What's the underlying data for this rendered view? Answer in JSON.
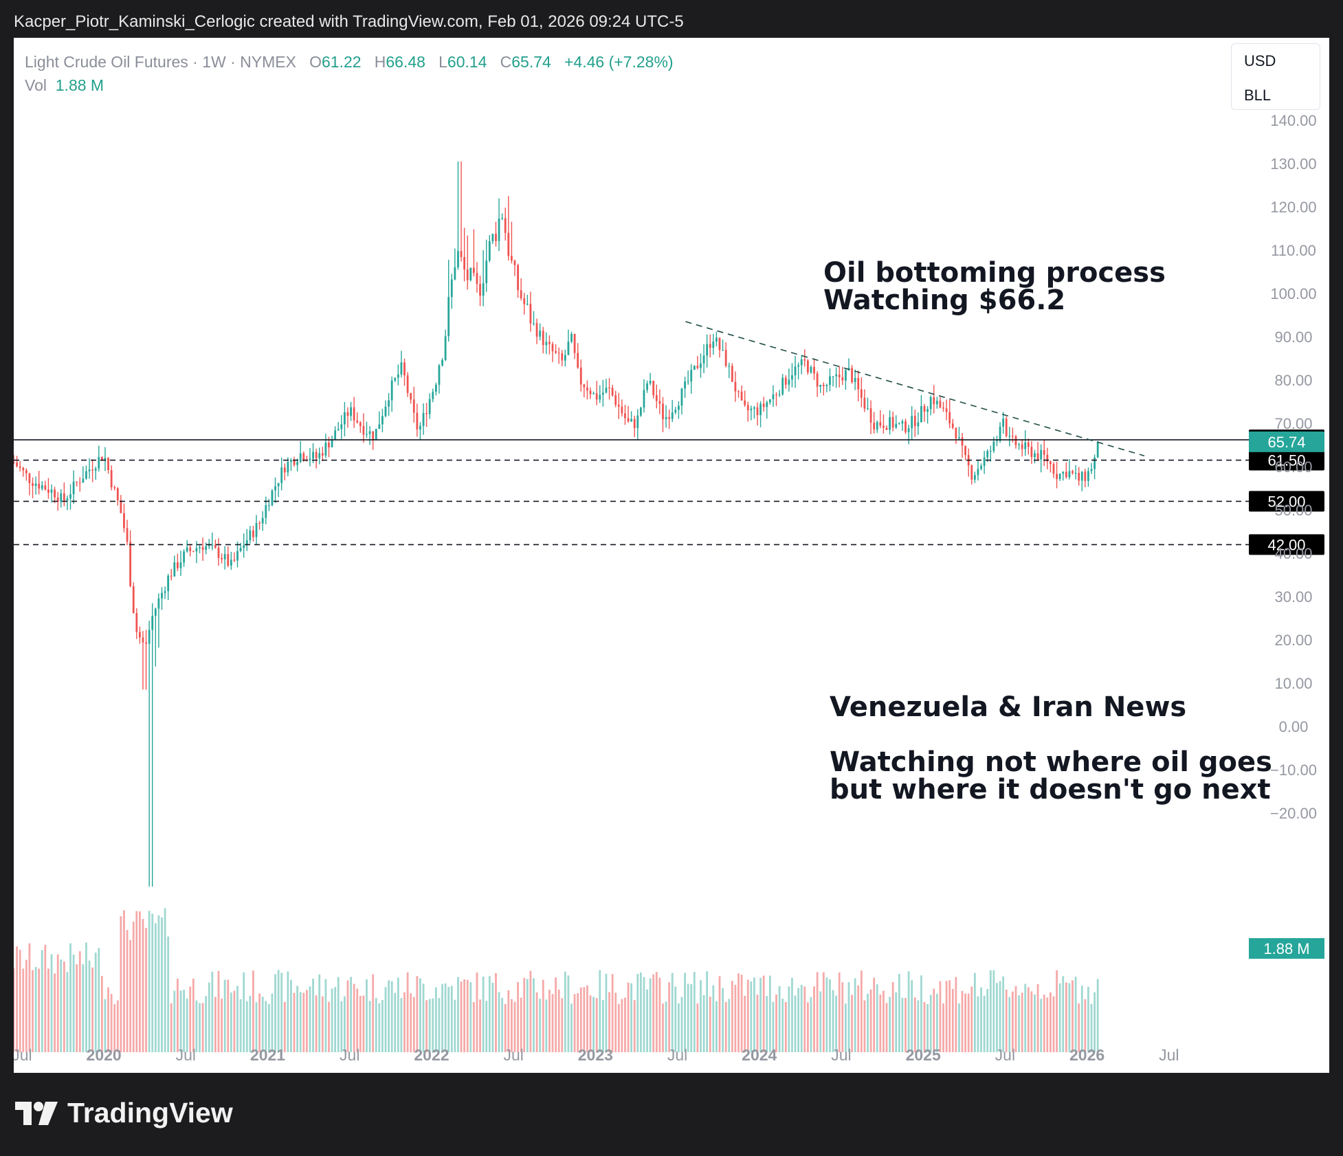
{
  "caption": "Kacper_Piotr_Kaminski_Cerlogic created with TradingView.com, Feb 01, 2026 09:24 UTC-5",
  "legend": {
    "title": "Light Crude Oil Futures · 1W · NYMEX",
    "o_label": "O",
    "o": "61.22",
    "h_label": "H",
    "h": "66.48",
    "l_label": "L",
    "l": "60.14",
    "c_label": "C",
    "c": "65.74",
    "change": "+4.46 (+7.28%)",
    "vol_label": "Vol",
    "vol": "1.88 M"
  },
  "units": {
    "currency": "USD",
    "unit": "BLL"
  },
  "annotations": {
    "top_line1": "Oil bottoming process",
    "top_line2": "Watching $66.2",
    "mid_line1": "Venezuela & Iran News",
    "mid_line2": "Watching not where oil goes",
    "mid_line3": "but where it doesn't go next"
  },
  "footer": {
    "brand": "TradingView"
  },
  "colors": {
    "up": "#26a69a",
    "down": "#ef5350",
    "vol_up": "#9fd8d1",
    "vol_down": "#f5a9a8",
    "axis_text": "#9598a1"
  },
  "chart_data": {
    "type": "candlestick",
    "title": "Light Crude Oil Futures · 1W · NYMEX",
    "y_ticks": [
      "140.00",
      "130.00",
      "120.00",
      "110.00",
      "100.00",
      "90.00",
      "80.00",
      "70.00",
      "60.00",
      "50.00",
      "40.00",
      "30.00",
      "20.00",
      "10.00",
      "0.00",
      "−10.00",
      "−20.00"
    ],
    "ylim": [
      -25,
      145
    ],
    "x_labels": [
      "Jul",
      "2020",
      "Jul",
      "2021",
      "Jul",
      "2022",
      "Jul",
      "2023",
      "Jul",
      "2024",
      "Jul",
      "2025",
      "Jul",
      "2026",
      "Jul"
    ],
    "x_positions_years": [
      2019.5,
      2020.0,
      2020.5,
      2021.0,
      2021.5,
      2022.0,
      2022.5,
      2023.0,
      2023.5,
      2024.0,
      2024.5,
      2025.0,
      2025.5,
      2026.0,
      2026.5
    ],
    "xlim": [
      2019.45,
      2027.0
    ],
    "last_date": 2026.08,
    "levels": [
      {
        "value": 66.2,
        "label": "66.20",
        "style": "solid"
      },
      {
        "value": 61.5,
        "label": "61.50",
        "style": "dashed"
      },
      {
        "value": 52.0,
        "label": "52.00",
        "style": "dashed"
      },
      {
        "value": 42.0,
        "label": "42.00",
        "style": "dashed"
      }
    ],
    "last_price": {
      "value": 65.74,
      "label": "65.74"
    },
    "last_volume": {
      "label": "1.88 M"
    },
    "trendline": [
      {
        "x": 2023.55,
        "y": 93.5
      },
      {
        "x": 2026.35,
        "y": 62.5
      }
    ],
    "price_path": [
      [
        2019.45,
        61
      ],
      [
        2019.55,
        57
      ],
      [
        2019.7,
        54
      ],
      [
        2019.75,
        52
      ],
      [
        2019.85,
        57
      ],
      [
        2019.95,
        61
      ],
      [
        2020.0,
        63
      ],
      [
        2020.05,
        56
      ],
      [
        2020.1,
        50
      ],
      [
        2020.14,
        43
      ],
      [
        2020.17,
        30
      ],
      [
        2020.2,
        22
      ],
      [
        2020.25,
        18
      ],
      [
        2020.3,
        26
      ],
      [
        2020.4,
        35
      ],
      [
        2020.5,
        40
      ],
      [
        2020.6,
        42
      ],
      [
        2020.7,
        40
      ],
      [
        2020.78,
        37
      ],
      [
        2020.85,
        42
      ],
      [
        2020.95,
        47
      ],
      [
        2021.0,
        52
      ],
      [
        2021.1,
        60
      ],
      [
        2021.2,
        63
      ],
      [
        2021.3,
        62
      ],
      [
        2021.4,
        67
      ],
      [
        2021.5,
        73
      ],
      [
        2021.58,
        69
      ],
      [
        2021.65,
        67
      ],
      [
        2021.75,
        78
      ],
      [
        2021.82,
        83
      ],
      [
        2021.88,
        73
      ],
      [
        2021.92,
        68
      ],
      [
        2022.0,
        77
      ],
      [
        2022.08,
        90
      ],
      [
        2022.15,
        110
      ],
      [
        2022.2,
        105
      ],
      [
        2022.28,
        100
      ],
      [
        2022.35,
        110
      ],
      [
        2022.43,
        119
      ],
      [
        2022.5,
        104
      ],
      [
        2022.6,
        94
      ],
      [
        2022.7,
        88
      ],
      [
        2022.8,
        84
      ],
      [
        2022.85,
        90
      ],
      [
        2022.9,
        80
      ],
      [
        2022.96,
        78
      ],
      [
        2023.0,
        76
      ],
      [
        2023.08,
        78
      ],
      [
        2023.2,
        70
      ],
      [
        2023.25,
        70
      ],
      [
        2023.32,
        80
      ],
      [
        2023.42,
        71
      ],
      [
        2023.5,
        75
      ],
      [
        2023.6,
        82
      ],
      [
        2023.72,
        90
      ],
      [
        2023.8,
        84
      ],
      [
        2023.9,
        73
      ],
      [
        2024.0,
        73
      ],
      [
        2024.1,
        77
      ],
      [
        2024.2,
        82
      ],
      [
        2024.28,
        84
      ],
      [
        2024.38,
        78
      ],
      [
        2024.45,
        80
      ],
      [
        2024.55,
        82
      ],
      [
        2024.62,
        76
      ],
      [
        2024.7,
        70
      ],
      [
        2024.8,
        70
      ],
      [
        2024.88,
        69
      ],
      [
        2024.96,
        71
      ],
      [
        2025.05,
        76
      ],
      [
        2025.12,
        73
      ],
      [
        2025.2,
        68
      ],
      [
        2025.25,
        62
      ],
      [
        2025.3,
        58
      ],
      [
        2025.38,
        62
      ],
      [
        2025.45,
        66
      ],
      [
        2025.48,
        73
      ],
      [
        2025.52,
        66
      ],
      [
        2025.58,
        65
      ],
      [
        2025.68,
        63
      ],
      [
        2025.75,
        62
      ],
      [
        2025.82,
        58
      ],
      [
        2025.88,
        59
      ],
      [
        2025.95,
        57
      ],
      [
        2026.0,
        58
      ],
      [
        2026.04,
        61
      ],
      [
        2026.08,
        65.74
      ]
    ]
  }
}
